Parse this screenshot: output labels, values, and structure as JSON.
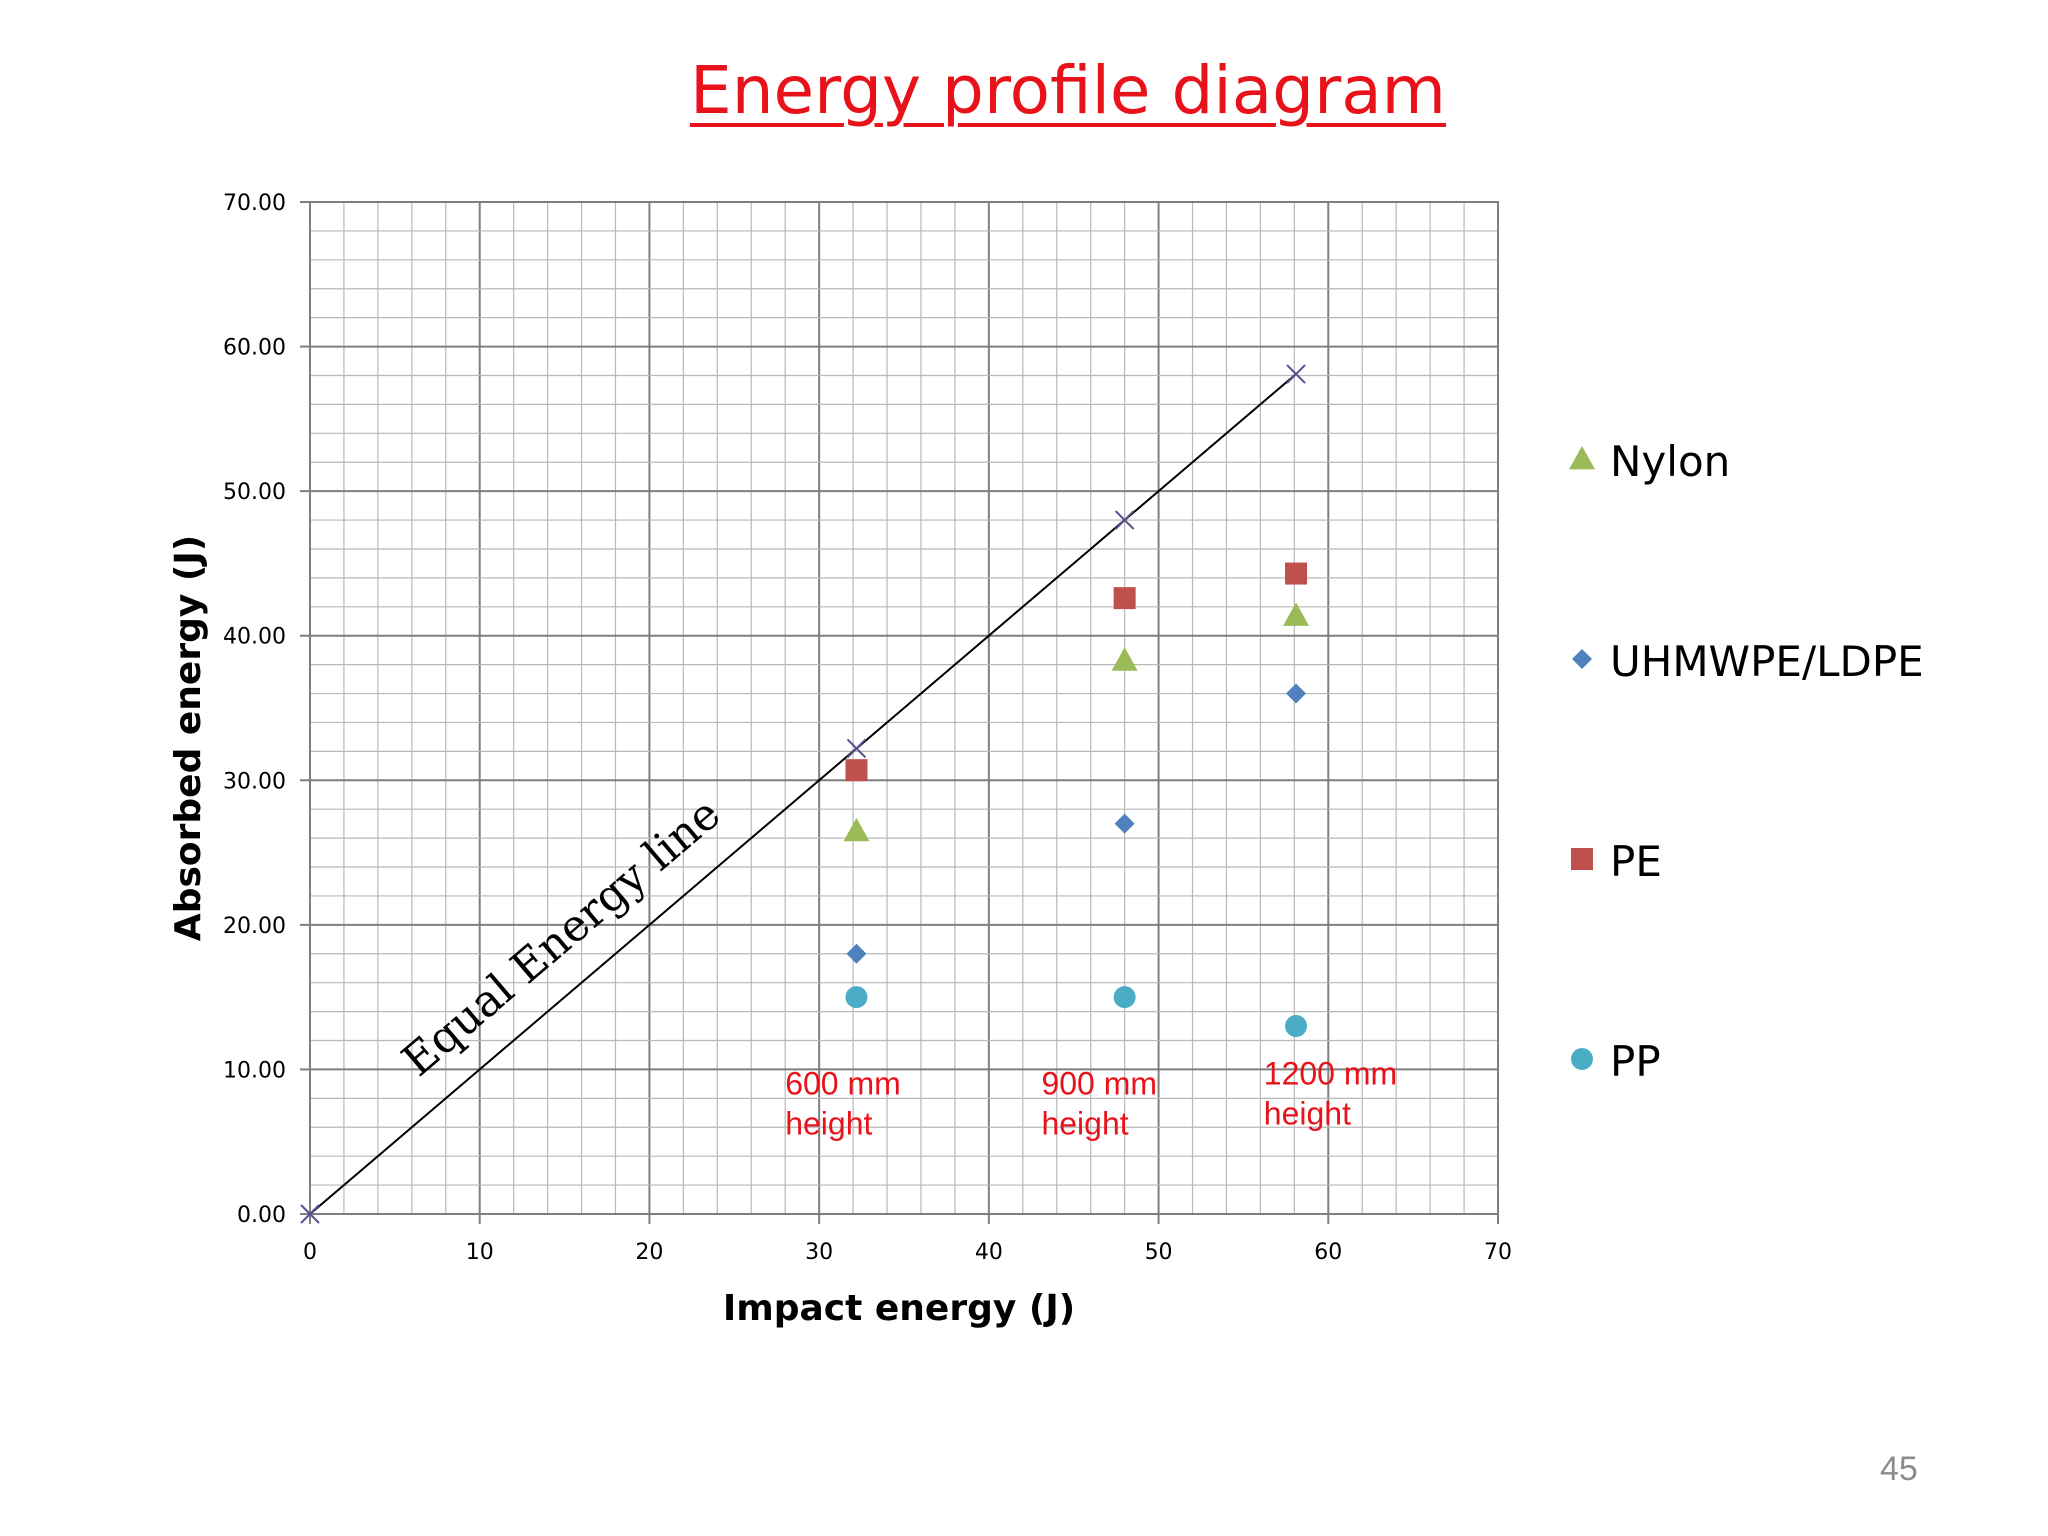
{
  "slide": {
    "title": "Energy profile diagram",
    "page_number": "45"
  },
  "chart_data": {
    "type": "scatter",
    "xlabel": "Impact energy (J)",
    "ylabel": "Absorbed energy (J)",
    "xlim": [
      0,
      70
    ],
    "ylim": [
      0,
      70
    ],
    "x_ticks": [
      "0",
      "10",
      "20",
      "30",
      "40",
      "50",
      "60",
      "70"
    ],
    "y_ticks": [
      "0.00",
      "10.00",
      "20.00",
      "30.00",
      "40.00",
      "50.00",
      "60.00",
      "70.00"
    ],
    "grid": true,
    "legend_position": "right",
    "series": [
      {
        "name": "Nylon",
        "marker": "triangle",
        "color": "#9bbb59",
        "points": [
          {
            "x": 32.2,
            "y": 26.5
          },
          {
            "x": 48.0,
            "y": 38.3
          },
          {
            "x": 58.1,
            "y": 41.4
          }
        ]
      },
      {
        "name": "UHMWPE/LDPE",
        "marker": "diamond",
        "color": "#4f81bd",
        "points": [
          {
            "x": 32.2,
            "y": 18.0
          },
          {
            "x": 48.0,
            "y": 27.0
          },
          {
            "x": 58.1,
            "y": 36.0
          }
        ]
      },
      {
        "name": "PE",
        "marker": "square",
        "color": "#c0504d",
        "points": [
          {
            "x": 32.2,
            "y": 30.7
          },
          {
            "x": 48.0,
            "y": 42.6
          },
          {
            "x": 58.1,
            "y": 44.3
          }
        ]
      },
      {
        "name": "PP",
        "marker": "circle",
        "color": "#4bacc6",
        "points": [
          {
            "x": 32.2,
            "y": 15.0
          },
          {
            "x": 48.0,
            "y": 15.0
          },
          {
            "x": 58.1,
            "y": 13.0
          }
        ]
      }
    ],
    "equal_energy_line": {
      "label": "Equal Energy line",
      "color": "#000000",
      "marker_color": "#5a4f8f",
      "points": [
        {
          "x": 0,
          "y": 0
        },
        {
          "x": 32.2,
          "y": 32.2
        },
        {
          "x": 48.0,
          "y": 48.0
        },
        {
          "x": 58.1,
          "y": 58.1
        }
      ]
    },
    "annotations": [
      {
        "line1": "600 mm",
        "line2": "height",
        "x": 28.0,
        "y": 9.1
      },
      {
        "line1": "900 mm",
        "line2": "height",
        "x": 43.1,
        "y": 9.1
      },
      {
        "line1": "1200 mm",
        "line2": "height",
        "x": 56.2,
        "y": 9.8
      }
    ]
  }
}
